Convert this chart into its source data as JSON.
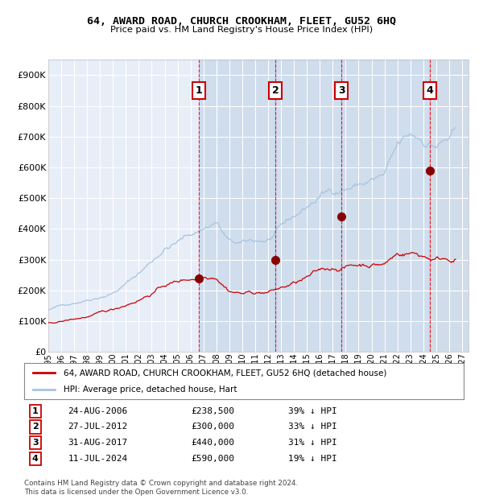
{
  "title": "64, AWARD ROAD, CHURCH CROOKHAM, FLEET, GU52 6HQ",
  "subtitle": "Price paid vs. HM Land Registry's House Price Index (HPI)",
  "ylim": [
    0,
    950000
  ],
  "xlim_start": 1995.0,
  "xlim_end": 2027.5,
  "yticks": [
    0,
    100000,
    200000,
    300000,
    400000,
    500000,
    600000,
    700000,
    800000,
    900000
  ],
  "xticks": [
    1995,
    1996,
    1997,
    1998,
    1999,
    2000,
    2001,
    2002,
    2003,
    2004,
    2005,
    2006,
    2007,
    2008,
    2009,
    2010,
    2011,
    2012,
    2013,
    2014,
    2015,
    2016,
    2017,
    2018,
    2019,
    2020,
    2021,
    2022,
    2023,
    2024,
    2025,
    2026,
    2027
  ],
  "bg_color": "#e8eef8",
  "hpi_color": "#a8c4e0",
  "price_color": "#cc0000",
  "sale_marker_color": "#880000",
  "grid_color": "#ffffff",
  "purchases": [
    {
      "date": 2006.648,
      "price": 238500,
      "label": "1"
    },
    {
      "date": 2012.571,
      "price": 300000,
      "label": "2"
    },
    {
      "date": 2017.664,
      "price": 440000,
      "label": "3"
    },
    {
      "date": 2024.528,
      "price": 590000,
      "label": "4"
    }
  ],
  "legend_entries": [
    {
      "label": "64, AWARD ROAD, CHURCH CROOKHAM, FLEET, GU52 6HQ (detached house)",
      "color": "#cc0000"
    },
    {
      "label": "HPI: Average price, detached house, Hart",
      "color": "#a8c4e0"
    }
  ],
  "table_rows": [
    {
      "num": "1",
      "date": "24-AUG-2006",
      "price": "£238,500",
      "pct": "39% ↓ HPI"
    },
    {
      "num": "2",
      "date": "27-JUL-2012",
      "price": "£300,000",
      "pct": "33% ↓ HPI"
    },
    {
      "num": "3",
      "date": "31-AUG-2017",
      "price": "£440,000",
      "pct": "31% ↓ HPI"
    },
    {
      "num": "4",
      "date": "11-JUL-2024",
      "price": "£590,000",
      "pct": "19% ↓ HPI"
    }
  ],
  "footer": "Contains HM Land Registry data © Crown copyright and database right 2024.\nThis data is licensed under the Open Government Licence v3.0."
}
